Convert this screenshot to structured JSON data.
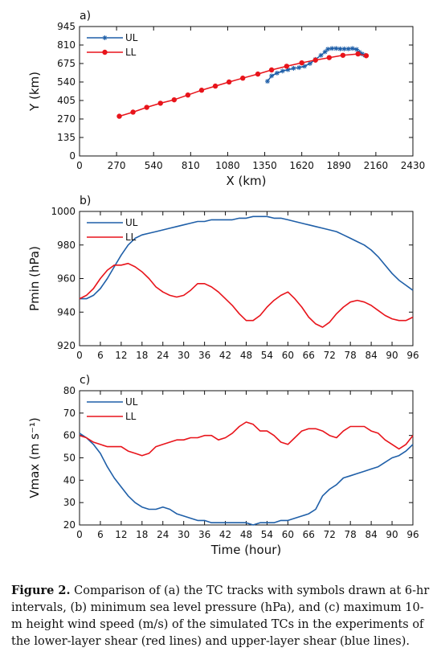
{
  "figure": {
    "caption_label": "Figure 2.",
    "caption_text": " Comparison of (a) the TC tracks with symbols drawn at 6-hr intervals, (b) minimum sea level pressure (hPa), and (c) maximum 10-m height wind speed (m/s) of the simulated TCs in the experiments of the lower-layer shear (red lines) and upper-layer shear (blue lines)."
  },
  "colors": {
    "UL": "#1f5fa8",
    "LL": "#e8141b",
    "axis": "#111111"
  },
  "chart_data": [
    {
      "panel": "a)",
      "type": "line",
      "xlabel": "X (km)",
      "ylabel": "Y (km)",
      "xlim": [
        0,
        2430
      ],
      "ylim": [
        0,
        945
      ],
      "xticks": [
        0,
        270,
        540,
        810,
        1080,
        1350,
        1620,
        1890,
        2160,
        2430
      ],
      "yticks": [
        0,
        135,
        270,
        405,
        540,
        675,
        810,
        945
      ],
      "legend": "top-left",
      "series": [
        {
          "name": "UL",
          "marker": "asterisk",
          "points": [
            [
              1370,
              545
            ],
            [
              1400,
              585
            ],
            [
              1440,
              605
            ],
            [
              1480,
              620
            ],
            [
              1520,
              630
            ],
            [
              1560,
              640
            ],
            [
              1600,
              645
            ],
            [
              1640,
              655
            ],
            [
              1680,
              675
            ],
            [
              1720,
              705
            ],
            [
              1760,
              735
            ],
            [
              1790,
              760
            ],
            [
              1810,
              780
            ],
            [
              1840,
              785
            ],
            [
              1870,
              785
            ],
            [
              1900,
              782
            ],
            [
              1930,
              782
            ],
            [
              1960,
              782
            ],
            [
              1990,
              785
            ],
            [
              2020,
              778
            ],
            [
              2040,
              758
            ],
            [
              2060,
              745
            ],
            [
              2080,
              735
            ]
          ]
        },
        {
          "name": "LL",
          "marker": "circle",
          "points": [
            [
              290,
              290
            ],
            [
              390,
              320
            ],
            [
              490,
              355
            ],
            [
              590,
              385
            ],
            [
              690,
              410
            ],
            [
              790,
              445
            ],
            [
              890,
              480
            ],
            [
              990,
              510
            ],
            [
              1090,
              540
            ],
            [
              1190,
              568
            ],
            [
              1300,
              598
            ],
            [
              1400,
              628
            ],
            [
              1510,
              655
            ],
            [
              1620,
              680
            ],
            [
              1720,
              700
            ],
            [
              1820,
              718
            ],
            [
              1920,
              735
            ],
            [
              2030,
              745
            ],
            [
              2090,
              732
            ]
          ]
        }
      ]
    },
    {
      "panel": "b)",
      "type": "line",
      "xlabel": "",
      "ylabel": "Pmin (hPa)",
      "xlim": [
        0,
        96
      ],
      "ylim": [
        920,
        1000
      ],
      "xticks": [
        0,
        6,
        12,
        18,
        24,
        30,
        36,
        42,
        48,
        54,
        60,
        66,
        72,
        78,
        84,
        90,
        96
      ],
      "yticks": [
        920,
        940,
        960,
        980,
        1000
      ],
      "legend": "top-left",
      "series": [
        {
          "name": "UL",
          "x": [
            0,
            2,
            4,
            6,
            8,
            10,
            12,
            14,
            16,
            18,
            20,
            22,
            24,
            26,
            28,
            30,
            32,
            34,
            36,
            38,
            40,
            42,
            44,
            46,
            48,
            50,
            52,
            54,
            56,
            58,
            60,
            62,
            64,
            66,
            68,
            70,
            72,
            74,
            76,
            78,
            80,
            82,
            84,
            86,
            88,
            90,
            92,
            94,
            96
          ],
          "values": [
            948,
            948,
            950,
            954,
            960,
            967,
            974,
            980,
            984,
            986,
            987,
            988,
            989,
            990,
            991,
            992,
            993,
            994,
            994,
            995,
            995,
            995,
            995,
            996,
            996,
            997,
            997,
            997,
            996,
            996,
            995,
            994,
            993,
            992,
            991,
            990,
            989,
            988,
            986,
            984,
            982,
            980,
            977,
            973,
            968,
            963,
            959,
            956,
            953
          ]
        },
        {
          "name": "LL",
          "x": [
            0,
            2,
            4,
            6,
            8,
            10,
            12,
            14,
            16,
            18,
            20,
            22,
            24,
            26,
            28,
            30,
            32,
            34,
            36,
            38,
            40,
            42,
            44,
            46,
            48,
            50,
            52,
            54,
            56,
            58,
            60,
            62,
            64,
            66,
            68,
            70,
            72,
            74,
            76,
            78,
            80,
            82,
            84,
            86,
            88,
            90,
            92,
            94,
            96
          ],
          "values": [
            948,
            950,
            954,
            960,
            965,
            968,
            968,
            969,
            967,
            964,
            960,
            955,
            952,
            950,
            949,
            950,
            953,
            957,
            957,
            955,
            952,
            948,
            944,
            939,
            935,
            935,
            938,
            943,
            947,
            950,
            952,
            948,
            943,
            937,
            933,
            931,
            934,
            939,
            943,
            946,
            947,
            946,
            944,
            941,
            938,
            936,
            935,
            935,
            937
          ]
        }
      ]
    },
    {
      "panel": "c)",
      "type": "line",
      "xlabel": "Time (hour)",
      "ylabel": "Vmax (m s⁻¹)",
      "xlim": [
        0,
        96
      ],
      "ylim": [
        20,
        80
      ],
      "xticks": [
        0,
        6,
        12,
        18,
        24,
        30,
        36,
        42,
        48,
        54,
        60,
        66,
        72,
        78,
        84,
        90,
        96
      ],
      "yticks": [
        20,
        30,
        40,
        50,
        60,
        70,
        80
      ],
      "legend": "top-left",
      "series": [
        {
          "name": "UL",
          "x": [
            0,
            2,
            4,
            6,
            8,
            10,
            12,
            14,
            16,
            18,
            20,
            22,
            24,
            26,
            28,
            30,
            32,
            34,
            36,
            38,
            40,
            42,
            44,
            46,
            48,
            50,
            52,
            54,
            56,
            58,
            60,
            62,
            64,
            66,
            68,
            70,
            72,
            74,
            76,
            78,
            80,
            82,
            84,
            86,
            88,
            90,
            92,
            94,
            96
          ],
          "values": [
            61,
            59,
            56,
            52,
            46,
            41,
            37,
            33,
            30,
            28,
            27,
            27,
            28,
            27,
            25,
            24,
            23,
            22,
            22,
            21,
            21,
            21,
            21,
            21,
            21,
            20,
            21,
            21,
            21,
            22,
            22,
            23,
            24,
            25,
            27,
            33,
            36,
            38,
            41,
            42,
            43,
            44,
            45,
            46,
            48,
            50,
            51,
            53,
            56
          ]
        },
        {
          "name": "LL",
          "x": [
            0,
            2,
            4,
            6,
            8,
            10,
            12,
            14,
            16,
            18,
            20,
            22,
            24,
            26,
            28,
            30,
            32,
            34,
            36,
            38,
            40,
            42,
            44,
            46,
            48,
            50,
            52,
            54,
            56,
            58,
            60,
            62,
            64,
            66,
            68,
            70,
            72,
            74,
            76,
            78,
            80,
            82,
            84,
            86,
            88,
            90,
            92,
            94,
            96
          ],
          "values": [
            60,
            59,
            57,
            56,
            55,
            55,
            55,
            53,
            52,
            51,
            52,
            55,
            56,
            57,
            58,
            58,
            59,
            59,
            60,
            60,
            58,
            59,
            61,
            64,
            66,
            65,
            62,
            62,
            60,
            57,
            56,
            59,
            62,
            63,
            63,
            62,
            60,
            59,
            62,
            64,
            64,
            64,
            62,
            61,
            58,
            56,
            54,
            56,
            60
          ]
        }
      ]
    }
  ]
}
